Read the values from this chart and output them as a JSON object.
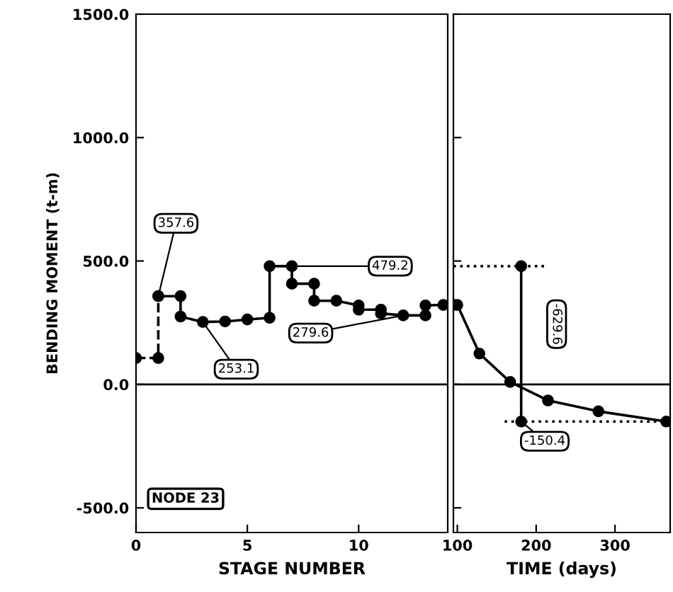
{
  "chart_data": [
    {
      "type": "line",
      "xlabel": "STAGE NUMBER",
      "ylabel": "BENDING MOMENT (t-m)",
      "xlim": [
        0,
        14
      ],
      "xticks": [
        0,
        5,
        10
      ],
      "ylim": [
        -600,
        1500
      ],
      "yticks": [
        {
          "value": -500,
          "label": "-500.0"
        },
        {
          "value": 0,
          "label": "0.0"
        },
        {
          "value": 500,
          "label": "500.0"
        },
        {
          "value": 1000,
          "label": "1000.0"
        },
        {
          "value": 1500,
          "label": "1500.0"
        }
      ],
      "grid": false,
      "ref_lines": [
        {
          "axis": "y",
          "value": 0,
          "color": "#000000",
          "line_style": "solid"
        }
      ],
      "series": [
        {
          "color": "#000000",
          "line_style": "dashed",
          "marker": "circle",
          "x": [
            0,
            1,
            1
          ],
          "values": [
            107,
            107,
            357.6
          ]
        },
        {
          "color": "#000000",
          "line_style": "solid",
          "marker": "circle",
          "x": [
            1,
            2,
            2,
            3,
            4,
            5,
            6,
            6,
            7,
            7,
            8,
            8,
            9,
            10,
            10,
            11,
            11,
            12,
            13,
            13,
            13.8
          ],
          "values": [
            357.6,
            357.6,
            275,
            253.1,
            255,
            263,
            270,
            479.2,
            479.2,
            408,
            408,
            339,
            339,
            320,
            303,
            303,
            287.5,
            279.6,
            279.6,
            320,
            322
          ]
        }
      ],
      "annotations": [
        {
          "text": "357.6",
          "x": 1,
          "y": 357.6
        },
        {
          "text": "253.1",
          "x": 3,
          "y": 253.1
        },
        {
          "text": "479.2",
          "x": 7,
          "y": 479.2
        },
        {
          "text": "279.6",
          "x": 12,
          "y": 279.6
        },
        "NODE 23"
      ]
    },
    {
      "type": "line",
      "xlabel": "TIME (days)",
      "xlim": [
        95,
        370
      ],
      "xticks": [
        100,
        200,
        300
      ],
      "ylim": [
        -600,
        1500
      ],
      "yticks": [
        {
          "value": -500,
          "label": null
        },
        {
          "value": 0,
          "label": null
        },
        {
          "value": 500,
          "label": null
        },
        {
          "value": 1000,
          "label": null
        },
        {
          "value": 1500,
          "label": null
        }
      ],
      "tick_labels": "x",
      "grid": false,
      "ref_lines": [
        {
          "axis": "y",
          "value": 0,
          "color": "#000000",
          "line_style": "solid"
        }
      ],
      "series": [
        {
          "color": "#000000",
          "line_style": "solid",
          "marker": "circle",
          "x": [
            95,
            100,
            128,
            167,
            215,
            279,
            365
          ],
          "values": [
            322,
            322,
            125,
            10,
            -65,
            -109,
            -150.4
          ]
        },
        {
          "color": "#000000",
          "line_style": "dotted",
          "marker": "none",
          "x": [
            95,
            215
          ],
          "values": [
            479.2,
            479.2
          ]
        },
        {
          "color": "#000000",
          "line_style": "dotted",
          "marker": "none",
          "x": [
            160,
            365
          ],
          "values": [
            -150.4,
            -150.4
          ]
        },
        {
          "color": "#000000",
          "line_style": "solid",
          "marker": "circle",
          "x": [
            181,
            181
          ],
          "values": [
            479.2,
            -150.4
          ]
        }
      ],
      "annotations": [
        {
          "text": "-629.6",
          "x": 181,
          "y": 164.4
        },
        {
          "text": "-150.4",
          "x": 181,
          "y": -150.4
        }
      ]
    }
  ]
}
